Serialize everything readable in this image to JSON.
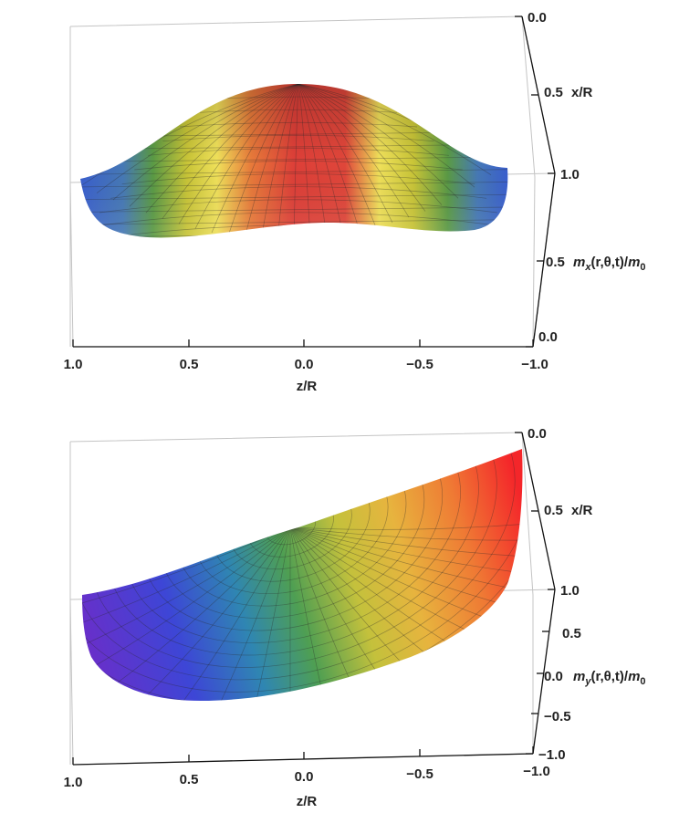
{
  "chart_data": [
    {
      "type": "surface3d",
      "title": "",
      "xlabel": "z/R",
      "ylabel": "x/R",
      "zlabel": "m_x(r,θ,t)/m_0",
      "zlabel_parts": {
        "m": "m",
        "sub": "x",
        "args": "(r,θ,t)/",
        "m0": "m",
        "zero": "0"
      },
      "x_ticks": [
        "1.0",
        "0.5",
        "0.0",
        "−0.5",
        "−1.0"
      ],
      "y_ticks": [
        "0.0",
        "0.5",
        "1.0"
      ],
      "z_ticks": [
        "0.0",
        "0.5"
      ],
      "xlim": [
        -1.0,
        1.0
      ],
      "ylim": [
        0.0,
        1.0
      ],
      "zlim": [
        0.0,
        1.0
      ]
    },
    {
      "type": "surface3d",
      "title": "",
      "xlabel": "z/R",
      "ylabel": "x/R",
      "zlabel": "m_y(r,θ,t)/m_0",
      "zlabel_parts": {
        "m": "m",
        "sub": "y",
        "args": "(r,θ,t)/",
        "m0": "m",
        "zero": "0"
      },
      "x_ticks": [
        "1.0",
        "0.5",
        "0.0",
        "−0.5",
        "−1.0"
      ],
      "y_ticks": [
        "0.0",
        "0.5",
        "1.0"
      ],
      "z_ticks": [
        "−1.0",
        "−0.5",
        "0.0",
        "0.5"
      ],
      "xlim": [
        -1.0,
        1.0
      ],
      "ylim": [
        0.0,
        1.0
      ],
      "zlim": [
        -1.0,
        1.0
      ]
    }
  ]
}
